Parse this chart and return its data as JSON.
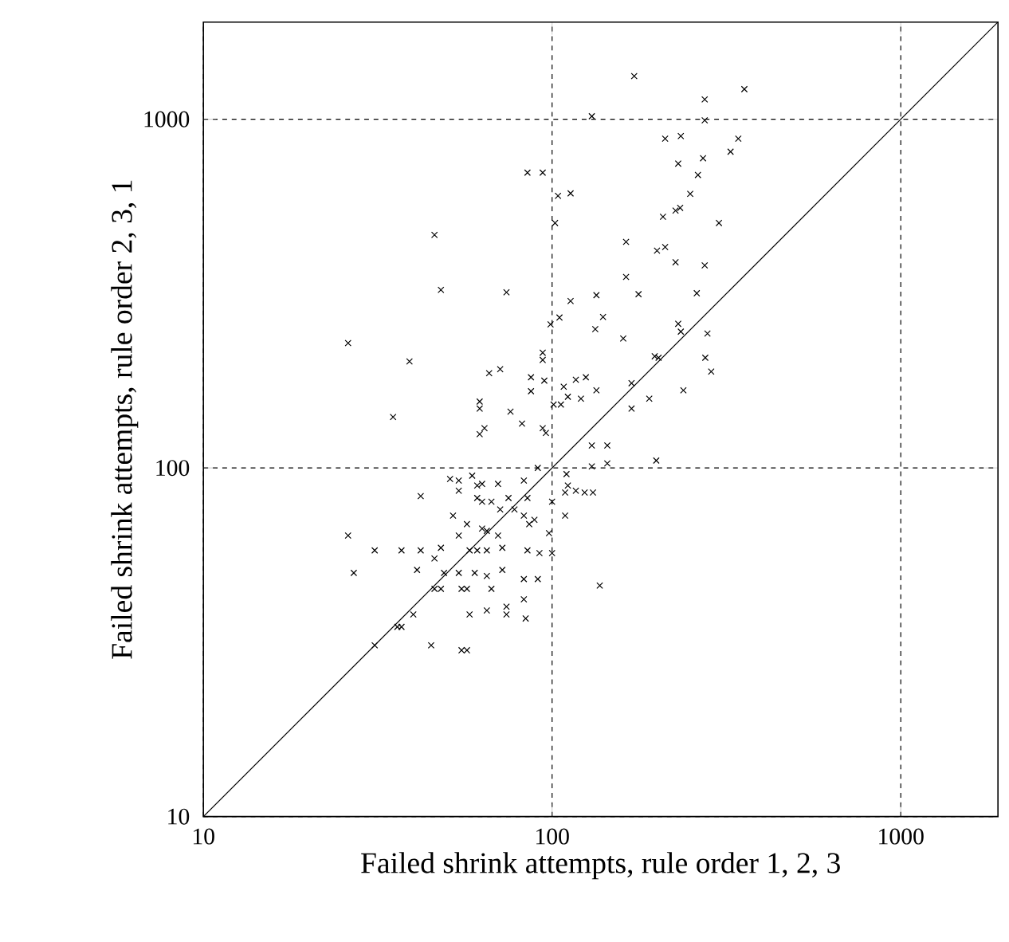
{
  "chart_data": {
    "type": "scatter",
    "xlabel": "Failed shrink attempts, rule order 1, 2, 3",
    "ylabel": "Failed shrink attempts, rule order 2, 3, 1",
    "log": "xy",
    "xlim": [
      10,
      1900
    ],
    "ylim": [
      10,
      1900
    ],
    "xticks": [
      10,
      100,
      1000
    ],
    "yticks": [
      10,
      100,
      1000
    ],
    "grid": true,
    "marker": "cross",
    "series": [
      {
        "color": "#000000",
        "x": [
          172,
          356,
          274,
          130,
          274,
          211,
          234,
          342,
          325,
          230,
          271,
          262,
          85,
          94,
          249,
          104,
          113,
          208,
          226,
          233,
          102,
          301,
          46,
          163,
          200,
          211,
          226,
          274,
          163,
          48,
          74,
          177,
          260,
          113,
          134,
          140,
          99,
          105,
          133,
          160,
          230,
          234,
          279,
          39,
          94,
          94,
          197,
          202,
          275,
          286,
          66,
          71,
          87,
          87,
          95,
          108,
          117,
          125,
          134,
          111,
          121,
          169,
          238,
          190,
          62,
          62,
          76,
          101,
          106,
          169,
          82,
          64,
          62,
          94,
          96,
          130,
          144,
          130,
          144,
          199,
          110,
          111,
          109,
          117,
          124,
          131,
          109,
          91,
          137,
          100,
          83,
          91,
          83,
          84,
          74,
          74,
          100,
          98,
          92,
          85,
          89,
          86,
          83,
          85,
          75,
          78,
          83,
          71,
          26,
          35,
          51,
          54,
          59,
          61,
          63,
          70,
          54,
          61,
          63,
          67,
          42,
          52,
          57,
          54,
          63,
          65,
          70,
          42,
          48,
          58,
          61,
          65,
          72,
          31,
          37,
          26,
          27,
          41,
          46,
          49,
          54,
          60,
          46,
          48,
          55,
          57,
          65,
          67,
          58,
          65,
          36,
          37,
          40,
          31,
          45,
          55,
          57,
          72
        ],
        "values": [
          1330,
          1220,
          1140,
          1020,
          993,
          880,
          895,
          880,
          807,
          746,
          773,
          692,
          703,
          703,
          611,
          603,
          613,
          525,
          547,
          557,
          504,
          504,
          466,
          445,
          420,
          430,
          389,
          381,
          353,
          324,
          319,
          315,
          317,
          301,
          313,
          271,
          258,
          270,
          250,
          235,
          259,
          246,
          243,
          202,
          214,
          204,
          209,
          207,
          207,
          189,
          187,
          192,
          182,
          166,
          178,
          171,
          179,
          182,
          167,
          160,
          158,
          175,
          167,
          158,
          155,
          148,
          145,
          152,
          152,
          148,
          134,
          130,
          125,
          130,
          126,
          116,
          116,
          101,
          103,
          105,
          96,
          89,
          85,
          86,
          85,
          85,
          73,
          100,
          46,
          57,
          48,
          48,
          42,
          37,
          40,
          38,
          80,
          65,
          57,
          58,
          71,
          69,
          92,
          82,
          82,
          76,
          73,
          76,
          228,
          140,
          93,
          92,
          95,
          89,
          90,
          90,
          86,
          82,
          80,
          80,
          83,
          73,
          69,
          64,
          67,
          66,
          64,
          58,
          59,
          58,
          58,
          58,
          59,
          58,
          58,
          64,
          50,
          51,
          55,
          50,
          50,
          50,
          45,
          45,
          45,
          45,
          49,
          45,
          38,
          39,
          35,
          35,
          38,
          31,
          31,
          30,
          30,
          51
        ]
      },
      {
        "type": "line",
        "color": "#000000",
        "marker": "none",
        "x": [
          10,
          1900
        ],
        "values": [
          10,
          1900
        ]
      }
    ]
  }
}
